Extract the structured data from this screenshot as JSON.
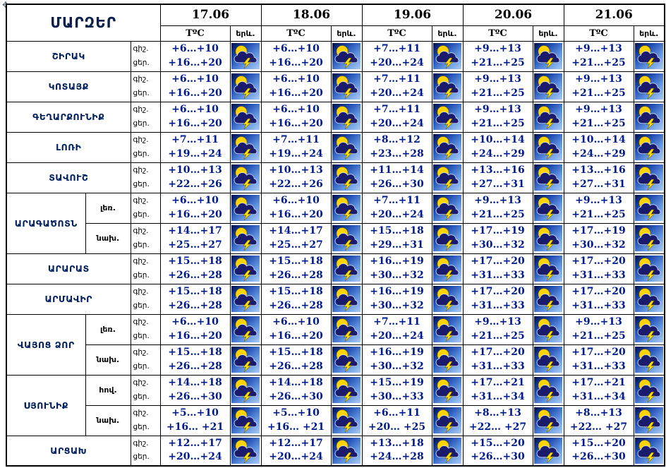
{
  "icons": {
    "corner": "scroll-anchor-icon",
    "weather_all_cells": "sun-cloud-lightning-icon"
  },
  "table": {
    "regions_header": "ՄԱՐԶԵՐ",
    "temp_label": "TºC",
    "icon_label": "երև.",
    "time_labels": {
      "night": "գիշ.",
      "day": "ցեր."
    },
    "dates": [
      "17.06",
      "18.06",
      "19.06",
      "20.06",
      "21.06"
    ],
    "colors": {
      "temp_text": "#001a8c",
      "region_text": "#002060",
      "border": "#000000",
      "icon_sun": "#ffd400",
      "icon_cloud": "#1b1b6e",
      "icon_bolt": "#ffe300",
      "icon_sky_dark": "#00104d",
      "icon_sky_light": "#a9c9f2"
    },
    "regions": [
      {
        "name": "ՇԻՐԱԿ",
        "subrows": [
          {
            "zone": null,
            "cells": [
              {
                "night": "+6…+10",
                "day": "+16…+20"
              },
              {
                "night": "+6…+10",
                "day": "+16…+20"
              },
              {
                "night": "+7…+11",
                "day": "+20…+24"
              },
              {
                "night": "+9…+13",
                "day": "+21…+25"
              },
              {
                "night": "+9…+13",
                "day": "+21…+25"
              }
            ]
          }
        ]
      },
      {
        "name": "ԿՈՏԱՅՔ",
        "subrows": [
          {
            "zone": null,
            "cells": [
              {
                "night": "+6…+10",
                "day": "+16…+20"
              },
              {
                "night": "+6…+10",
                "day": "+16…+20"
              },
              {
                "night": "+7…+11",
                "day": "+20…+24"
              },
              {
                "night": "+9…+13",
                "day": "+21…+25"
              },
              {
                "night": "+9…+13",
                "day": "+21…+25"
              }
            ]
          }
        ]
      },
      {
        "name": "ԳԵՂԱՐՔՈՒՆԻՔ",
        "subrows": [
          {
            "zone": null,
            "cells": [
              {
                "night": "+6…+10",
                "day": "+16…+20"
              },
              {
                "night": "+6…+10",
                "day": "+16…+20"
              },
              {
                "night": "+7…+11",
                "day": "+20…+24"
              },
              {
                "night": "+9…+13",
                "day": "+21…+25"
              },
              {
                "night": "+9…+13",
                "day": "+21…+25"
              }
            ]
          }
        ]
      },
      {
        "name": "ԼՈՌԻ",
        "subrows": [
          {
            "zone": null,
            "cells": [
              {
                "night": "+7…+11",
                "day": "+19…+24"
              },
              {
                "night": "+7…+11",
                "day": "+19…+24"
              },
              {
                "night": "+8…+12",
                "day": "+23…+28"
              },
              {
                "night": "+10…+14",
                "day": "+24…+29"
              },
              {
                "night": "+10…+14",
                "day": "+24…+29"
              }
            ]
          }
        ]
      },
      {
        "name": "ՏԱՎՈՒՇ",
        "subrows": [
          {
            "zone": null,
            "cells": [
              {
                "night": "+10…+13",
                "day": "+22…+26"
              },
              {
                "night": "+10…+13",
                "day": "+22…+26"
              },
              {
                "night": "+11…+14",
                "day": "+26…+30"
              },
              {
                "night": "+13…+16",
                "day": "+27…+31"
              },
              {
                "night": "+13…+16",
                "day": "+27…+31"
              }
            ]
          }
        ]
      },
      {
        "name": "ԱՐԱԳԱԾՈՏՆ",
        "subrows": [
          {
            "zone": "լեռ.",
            "cells": [
              {
                "night": "+6…+10",
                "day": "+16…+20"
              },
              {
                "night": "+6…+10",
                "day": "+16…+20"
              },
              {
                "night": "+7…+11",
                "day": "+20…+24"
              },
              {
                "night": "+9…+13",
                "day": "+21…+25"
              },
              {
                "night": "+9…+13",
                "day": "+21…+25"
              }
            ]
          },
          {
            "zone": "նախ.",
            "cells": [
              {
                "night": "+14…+17",
                "day": "+25…+27"
              },
              {
                "night": "+14…+17",
                "day": "+25…+27"
              },
              {
                "night": "+15…+18",
                "day": "+29…+31"
              },
              {
                "night": "+17…+19",
                "day": "+30…+32"
              },
              {
                "night": "+17…+19",
                "day": "+30…+32"
              }
            ]
          }
        ]
      },
      {
        "name": "ԱՐԱՐԱՏ",
        "subrows": [
          {
            "zone": null,
            "cells": [
              {
                "night": "+15…+18",
                "day": "+26…+28"
              },
              {
                "night": "+15…+18",
                "day": "+26…+28"
              },
              {
                "night": "+16…+19",
                "day": "+30…+32"
              },
              {
                "night": "+17…+20",
                "day": "+31…+33"
              },
              {
                "night": "+17…+20",
                "day": "+31…+33"
              }
            ]
          }
        ]
      },
      {
        "name": "ԱՐՄԱՎԻՐ",
        "subrows": [
          {
            "zone": null,
            "cells": [
              {
                "night": "+15…+18",
                "day": "+26…+28"
              },
              {
                "night": "+15…+18",
                "day": "+26…+28"
              },
              {
                "night": "+16…+19",
                "day": "+30…+32"
              },
              {
                "night": "+17…+20",
                "day": "+31…+33"
              },
              {
                "night": "+17…+20",
                "day": "+31…+33"
              }
            ]
          }
        ]
      },
      {
        "name": "ՎԱՅՈՑ ՁՈՐ",
        "subrows": [
          {
            "zone": "լեռ.",
            "cells": [
              {
                "night": "+6…+10",
                "day": "+16…+20"
              },
              {
                "night": "+6…+10",
                "day": "+16…+20"
              },
              {
                "night": "+7…+11",
                "day": "+20…+24"
              },
              {
                "night": "+9…+13",
                "day": "+21…+25"
              },
              {
                "night": "+9…+13",
                "day": "+21…+25"
              }
            ]
          },
          {
            "zone": "նախ.",
            "cells": [
              {
                "night": "+15…+18",
                "day": "+26…+28"
              },
              {
                "night": "+15…+18",
                "day": "+26…+28"
              },
              {
                "night": "+16…+19",
                "day": "+30…+32"
              },
              {
                "night": "+17…+20",
                "day": "+31…+33"
              },
              {
                "night": "+17…+20",
                "day": "+31…+33"
              }
            ]
          }
        ]
      },
      {
        "name": "ՍՅՈՒՆԻՔ",
        "subrows": [
          {
            "zone": "հով.",
            "cells": [
              {
                "night": "+14…+18",
                "day": "+26…+30"
              },
              {
                "night": "+14…+18",
                "day": "+26…+30"
              },
              {
                "night": "+15…+19",
                "day": "+30…+33"
              },
              {
                "night": "+17…+21",
                "day": "+31…+34"
              },
              {
                "night": "+17…+21",
                "day": "+31…+34"
              }
            ]
          },
          {
            "zone": "նախ.",
            "cells": [
              {
                "night": "+5…+10",
                "day": "+16… +21"
              },
              {
                "night": "+5…+10",
                "day": "+16… +21"
              },
              {
                "night": "+6…+11",
                "day": "+20… +25"
              },
              {
                "night": "+8…+13",
                "day": "+22… +27"
              },
              {
                "night": "+8…+13",
                "day": "+22… +27"
              }
            ]
          }
        ]
      },
      {
        "name": "ԱՐՑԱԽ",
        "subrows": [
          {
            "zone": null,
            "cells": [
              {
                "night": "+12…+17",
                "day": "+20…+24"
              },
              {
                "night": "+12…+17",
                "day": "+20…+24"
              },
              {
                "night": "+13…+18",
                "day": "+24…+28"
              },
              {
                "night": "+15…+20",
                "day": "+26…+30"
              },
              {
                "night": "+15…+20",
                "day": "+26…+30"
              }
            ]
          }
        ]
      }
    ]
  }
}
